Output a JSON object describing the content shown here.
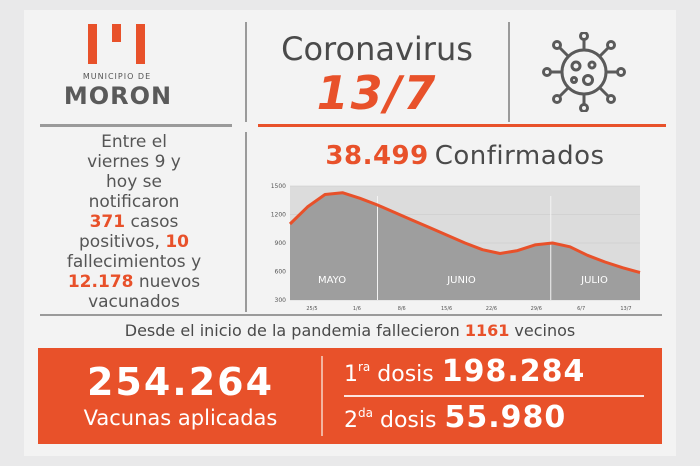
{
  "logo": {
    "subtitle": "MUNICIPIO DE",
    "name": "MORON"
  },
  "header": {
    "title": "Coronavirus",
    "date": "13/7"
  },
  "summary": {
    "line1": "Entre el",
    "line2": "viernes 9 y",
    "line3": "hoy se",
    "line4": "notificaron",
    "cases_num": "371",
    "cases_txt": " casos",
    "line6a": "positivos, ",
    "deaths_num": "10",
    "line7": "fallecimientos y",
    "vacc_num": "12.178",
    "vacc_txt": " nuevos",
    "line9": "vacunados"
  },
  "confirmed": {
    "number": "38.499",
    "label": "Confirmados"
  },
  "chart_data": {
    "type": "area",
    "y_ticks": [
      "1500",
      "1200",
      "900",
      "600",
      "300"
    ],
    "ylim": [
      300,
      1500
    ],
    "x_ticks": [
      "25/5",
      "1/6",
      "8/6",
      "15/6",
      "22/6",
      "29/6",
      "6/7",
      "13/7"
    ],
    "months": [
      "MAYO",
      "JUNIO",
      "JULIO"
    ],
    "x": [
      0,
      1,
      2,
      3,
      4,
      5,
      6,
      7,
      8,
      9,
      10,
      11,
      12,
      13,
      14,
      15,
      16,
      17,
      18,
      19,
      20
    ],
    "values": [
      1100,
      1280,
      1410,
      1430,
      1370,
      1300,
      1220,
      1140,
      1060,
      980,
      900,
      830,
      790,
      820,
      880,
      900,
      860,
      770,
      700,
      640,
      590
    ]
  },
  "pandemic": {
    "prefix": "Desde el inicio de la pandemia fallecieron ",
    "number": "1161",
    "suffix": " vecinos"
  },
  "vaccines": {
    "total": "254.264",
    "total_label": "Vacunas aplicadas",
    "dose1_prefix": "1",
    "dose1_sup": "ra",
    "dose1_label": " dosis",
    "dose1_value": "198.284",
    "dose2_prefix": "2",
    "dose2_sup": "da",
    "dose2_label": " dosis",
    "dose2_value": "55.980"
  },
  "colors": {
    "accent": "#e8512a",
    "text": "#4a4a4a",
    "background": "#f3f3f3"
  }
}
